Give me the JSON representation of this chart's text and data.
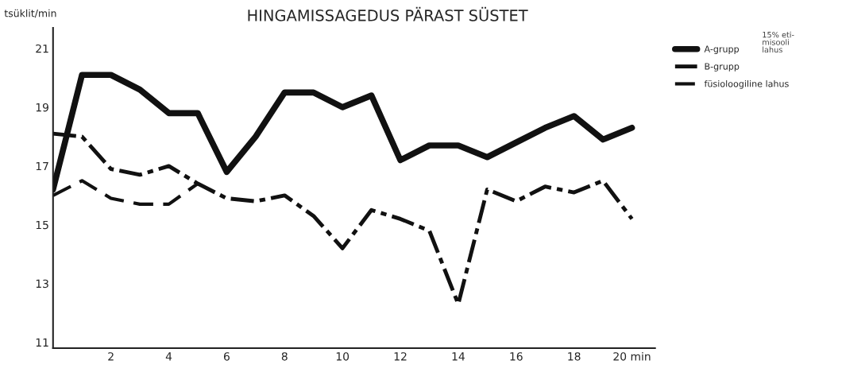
{
  "chart_data": {
    "type": "line",
    "title": "HINGAMISSAGEDUS PÄRAST SÜSTET",
    "ylabel": "tsüklit/min",
    "x": [
      0,
      1,
      2,
      3,
      4,
      5,
      6,
      7,
      8,
      9,
      10,
      11,
      12,
      13,
      14,
      15,
      16,
      17,
      18,
      19,
      20
    ],
    "series": [
      {
        "name": "A-grupp",
        "color": "#111111",
        "line_style": "solid",
        "values": [
          16.2,
          20.1,
          20.1,
          19.6,
          18.8,
          18.8,
          16.8,
          18.0,
          19.5,
          19.5,
          19.0,
          19.4,
          17.2,
          17.7,
          17.7,
          17.3,
          17.8,
          18.3,
          18.7,
          17.9,
          18.3
        ]
      },
      {
        "name": "B-grupp",
        "color": "#111111",
        "line_style": "dashdot",
        "values": [
          18.1,
          18.0,
          16.9,
          16.7,
          17.0,
          16.4,
          15.9,
          15.8,
          16.0,
          15.3,
          14.2,
          15.5,
          15.2,
          14.8,
          12.3,
          16.2,
          15.8,
          16.3,
          16.1,
          16.5,
          15.2
        ]
      },
      {
        "name": "füsioloogiline lahus",
        "color": "#111111",
        "line_style": "dashed",
        "x": [
          0,
          1,
          2,
          3,
          4,
          5
        ],
        "values": [
          16.0,
          16.5,
          15.9,
          15.7,
          15.7,
          16.4
        ]
      }
    ],
    "xlim": [
      0,
      20.8
    ],
    "ylim": [
      10.8,
      21.7
    ],
    "xticks": [
      2,
      4,
      6,
      8,
      10,
      12,
      14,
      16,
      18,
      {
        "value": 20,
        "label": "20 min"
      }
    ],
    "yticks": [
      11,
      13,
      15,
      17,
      19,
      21
    ],
    "annotations": [
      "15% eti-\nmisooli\nlahus"
    ],
    "grid": false,
    "legend": "right"
  }
}
